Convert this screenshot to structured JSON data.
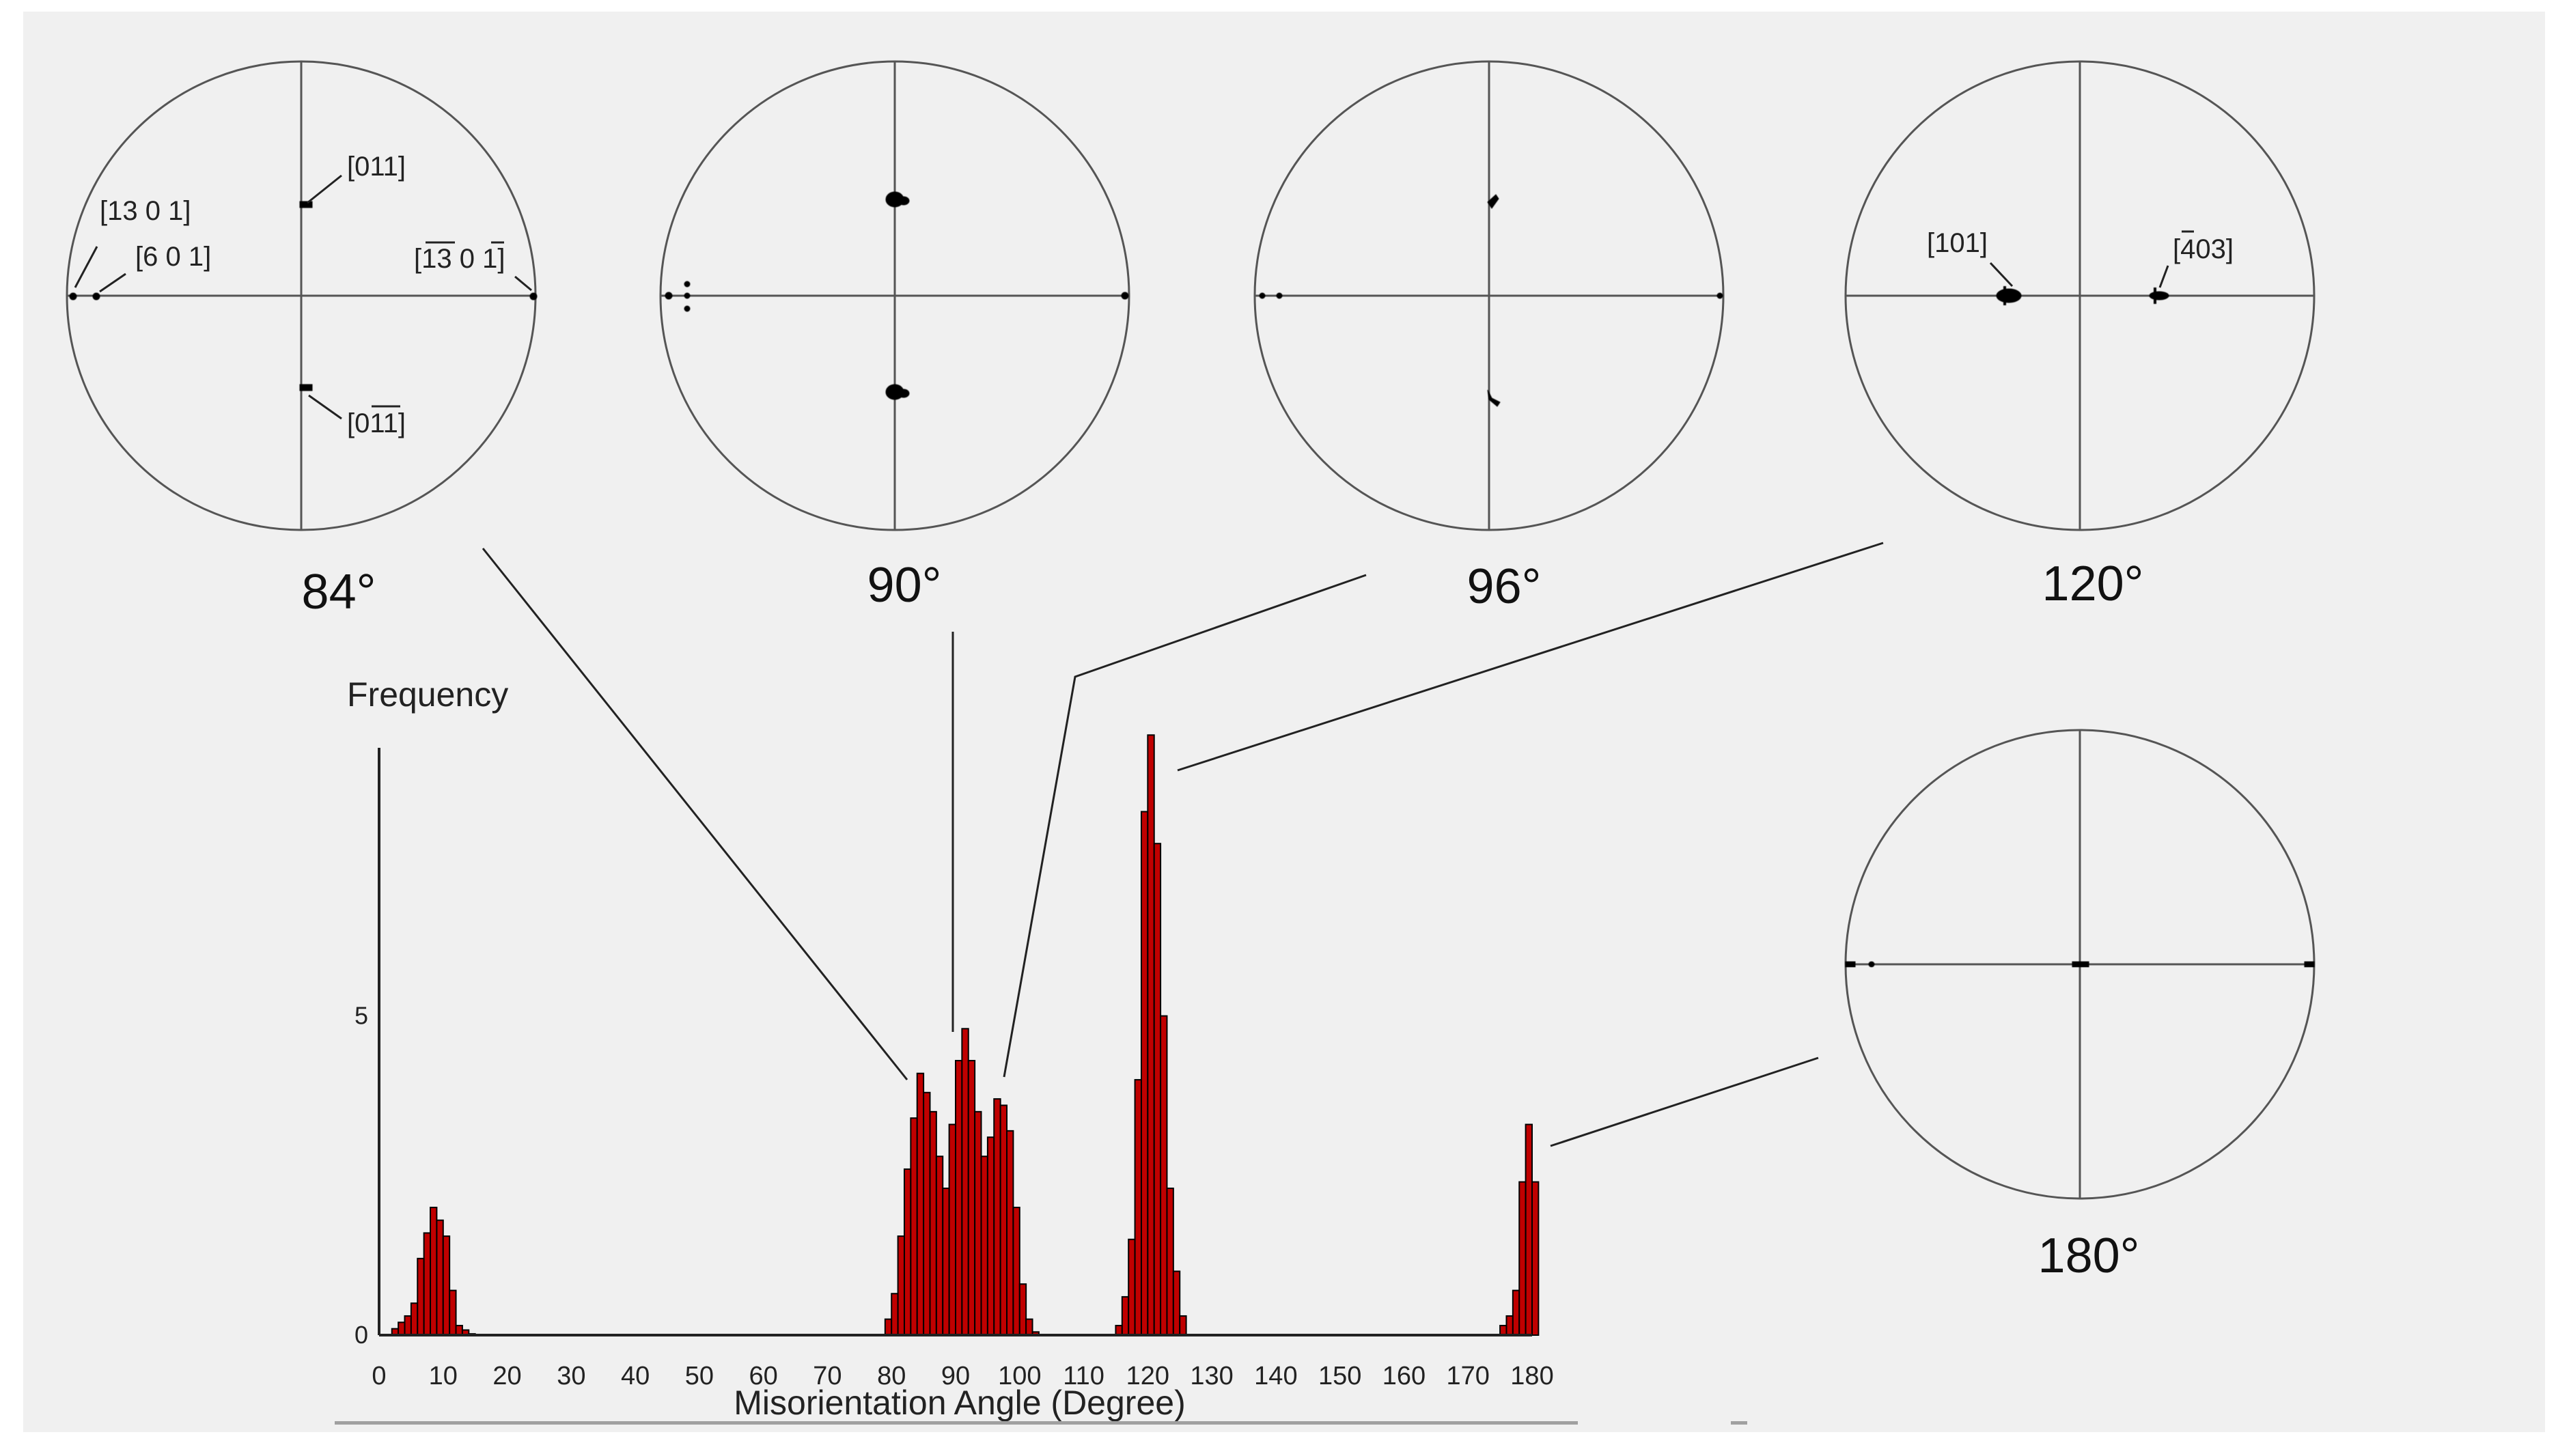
{
  "chart_data": {
    "type": "bar",
    "ylabel": "Frequency",
    "xlabel": "Misorientation Angle (Degree)",
    "xlim": [
      0,
      180
    ],
    "ylim": [
      0,
      9.2
    ],
    "bin_width": 1,
    "x_ticks": [
      "0",
      "10",
      "20",
      "30",
      "40",
      "50",
      "60",
      "70",
      "80",
      "90",
      "100",
      "110",
      "120",
      "130",
      "140",
      "150",
      "160",
      "170",
      "180"
    ],
    "y_ticks": [
      "0",
      "5"
    ],
    "bar_color": "#c00000",
    "values": [
      0,
      0,
      0.1,
      0.2,
      0.3,
      0.5,
      1.2,
      1.6,
      2,
      1.8,
      1.55,
      0.7,
      0.15,
      0.08,
      0.02,
      0,
      0,
      0,
      0,
      0,
      0,
      0,
      0,
      0,
      0,
      0,
      0,
      0,
      0,
      0,
      0,
      0,
      0,
      0,
      0,
      0,
      0,
      0,
      0,
      0,
      0,
      0,
      0,
      0,
      0,
      0,
      0,
      0,
      0,
      0,
      0,
      0,
      0,
      0,
      0,
      0,
      0,
      0,
      0,
      0,
      0,
      0,
      0,
      0,
      0,
      0,
      0,
      0,
      0,
      0,
      0,
      0,
      0,
      0,
      0,
      0,
      0,
      0,
      0,
      0.25,
      0.65,
      1.55,
      2.6,
      3.4,
      4.1,
      3.8,
      3.5,
      2.8,
      2.3,
      3.3,
      4.3,
      4.8,
      4.3,
      3.5,
      2.8,
      3.1,
      3.7,
      3.6,
      3.2,
      2,
      0.8,
      0.25,
      0.05,
      0,
      0,
      0,
      0,
      0,
      0,
      0,
      0,
      0,
      0,
      0,
      0,
      0.15,
      0.6,
      1.5,
      4,
      8.2,
      9.4,
      7.7,
      5,
      2.3,
      1,
      0.3,
      0,
      0,
      0,
      0,
      0,
      0,
      0,
      0,
      0,
      0,
      0,
      0,
      0,
      0,
      0,
      0,
      0,
      0,
      0,
      0,
      0,
      0,
      0,
      0,
      0,
      0,
      0,
      0,
      0,
      0,
      0,
      0,
      0,
      0,
      0,
      0,
      0,
      0,
      0,
      0,
      0,
      0,
      0,
      0,
      0,
      0,
      0,
      0,
      0,
      0.15,
      0.3,
      0.7,
      2.4,
      3.3,
      2.4
    ],
    "pole_figures": [
      {
        "angle_label": "84°",
        "annotations": [
          "[011]",
          "[13 0 1]",
          "[6 0 1]",
          "[13 0 1]",
          "[011]"
        ]
      },
      {
        "angle_label": "90°",
        "annotations": []
      },
      {
        "angle_label": "96°",
        "annotations": []
      },
      {
        "angle_label": "120°",
        "annotations": [
          "[101]",
          "[403]"
        ]
      },
      {
        "angle_label": "180°",
        "annotations": []
      }
    ]
  }
}
